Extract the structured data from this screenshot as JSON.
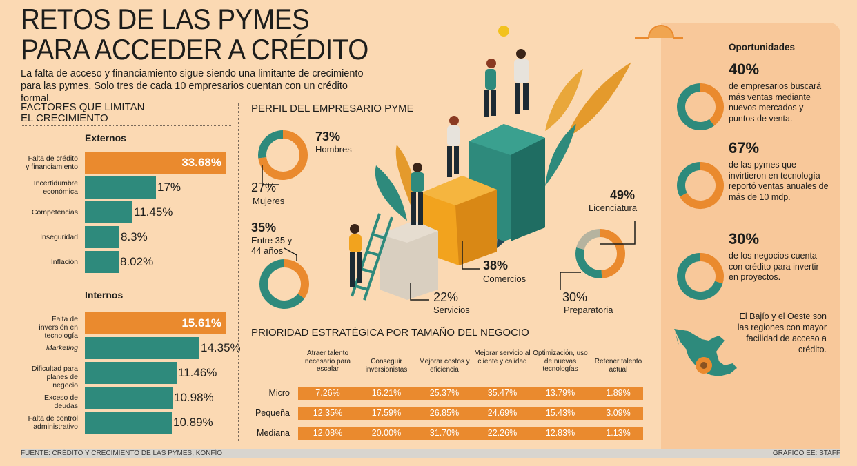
{
  "title_line1": "RETOS DE LAS PYMES",
  "title_line2": "PARA ACCEDER A CRÉDITO",
  "subtitle": "La falta de acceso y financiamiento sigue siendo una limitante de crecimiento para las pymes. Solo tres de cada 10 empresarios cuentan con un crédito formal.",
  "factors": {
    "heading_line1": "FACTORES QUE LIMITAN",
    "heading_line2": "EL CRECIMIENTO",
    "externos_label": "Externos",
    "internos_label": "Internos"
  },
  "profile": {
    "heading": "PERFIL DEL EMPRESARIO PYME",
    "hombres_pct": "73%",
    "hombres_lbl": "Hombres",
    "mujeres_pct": "27%",
    "mujeres_lbl": "Mujeres",
    "age_pct": "35%",
    "age_lbl1": "Entre 35 y",
    "age_lbl2": "44 años",
    "lic_pct": "49%",
    "lic_lbl": "Licenciatura",
    "prep_pct": "30%",
    "prep_lbl": "Preparatoria",
    "com_pct": "38%",
    "com_lbl": "Comercios",
    "serv_pct": "22%",
    "serv_lbl": "Servicios"
  },
  "priority": {
    "heading": "PRIORIDAD ESTRATÉGICA POR TAMAÑO DEL NEGOCIO"
  },
  "opportunities": {
    "heading": "Oportunidades",
    "items": [
      {
        "pct": "40%",
        "text": "de empresarios buscará más ventas mediante nuevos mercados y puntos de venta."
      },
      {
        "pct": "67%",
        "text": "de las pymes que invirtieron en tecnología reportó ventas anuales de más de 10 mdp."
      },
      {
        "pct": "30%",
        "text": "de los negocios cuenta con crédito para invertir en proyectos."
      }
    ],
    "region_text": "El Bajío y el Oeste son las regiones con mayor facilidad de acceso a crédito."
  },
  "footer": {
    "source": "FUENTE: CRÉDITO Y CRECIMIENTO DE LAS PYMES, KONFÍO",
    "credit": "GRÁFICO EE: STAFF"
  },
  "colors": {
    "orange": "#ea8a2e",
    "teal": "#2e8a7c",
    "gray": "#b5b39f",
    "bg": "#fbd9b3"
  },
  "chart_data": [
    {
      "type": "bar",
      "title": "Externos",
      "categories": [
        "Falta de crédito y financiamiento",
        "Incertidumbre económica",
        "Competencias",
        "Inseguridad",
        "Inflación"
      ],
      "values": [
        33.68,
        17,
        11.45,
        8.3,
        8.02
      ],
      "labels": [
        "33.68%",
        "17%",
        "11.45%",
        "8.3%",
        "8.02%"
      ]
    },
    {
      "type": "bar",
      "title": "Internos",
      "categories": [
        "Falta de inversión en tecnología",
        "Marketing",
        "Dificultad para planes de negocio",
        "Exceso de deudas",
        "Falta de control administrativo"
      ],
      "values": [
        15.61,
        14.35,
        11.46,
        10.98,
        10.89
      ],
      "labels": [
        "15.61%",
        "14.35%",
        "11.46%",
        "10.98%",
        "10.89%"
      ]
    },
    {
      "type": "pie",
      "title": "Género",
      "categories": [
        "Hombres",
        "Mujeres"
      ],
      "values": [
        73,
        27
      ]
    },
    {
      "type": "pie",
      "title": "Edad",
      "categories": [
        "Entre 35 y 44 años"
      ],
      "values": [
        35
      ]
    },
    {
      "type": "pie",
      "title": "Escolaridad",
      "categories": [
        "Licenciatura",
        "Preparatoria"
      ],
      "values": [
        49,
        30
      ]
    },
    {
      "type": "bar",
      "title": "Sector",
      "categories": [
        "Comercios",
        "Servicios"
      ],
      "values": [
        38,
        22
      ]
    },
    {
      "type": "table",
      "title": "PRIORIDAD ESTRATÉGICA POR TAMAÑO DEL NEGOCIO",
      "columns": [
        "Atraer talento necesario para escalar",
        "Conseguir inversionistas",
        "Mejorar costos y eficiencia",
        "Mejorar servicio al cliente y calidad",
        "Optimización, uso de nuevas tecnologías",
        "Retener talento actual"
      ],
      "rows": [
        {
          "name": "Micro",
          "values": [
            "7.26%",
            "16.21%",
            "25.37%",
            "35.47%",
            "13.79%",
            "1.89%"
          ]
        },
        {
          "name": "Pequeña",
          "values": [
            "12.35%",
            "17.59%",
            "26.85%",
            "24.69%",
            "15.43%",
            "3.09%"
          ]
        },
        {
          "name": "Mediana",
          "values": [
            "12.08%",
            "20.00%",
            "31.70%",
            "22.26%",
            "12.83%",
            "1.13%"
          ]
        }
      ]
    },
    {
      "type": "pie",
      "title": "Oportunidades",
      "categories": [
        "40%",
        "67%",
        "30%"
      ],
      "values": [
        40,
        67,
        30
      ]
    }
  ]
}
